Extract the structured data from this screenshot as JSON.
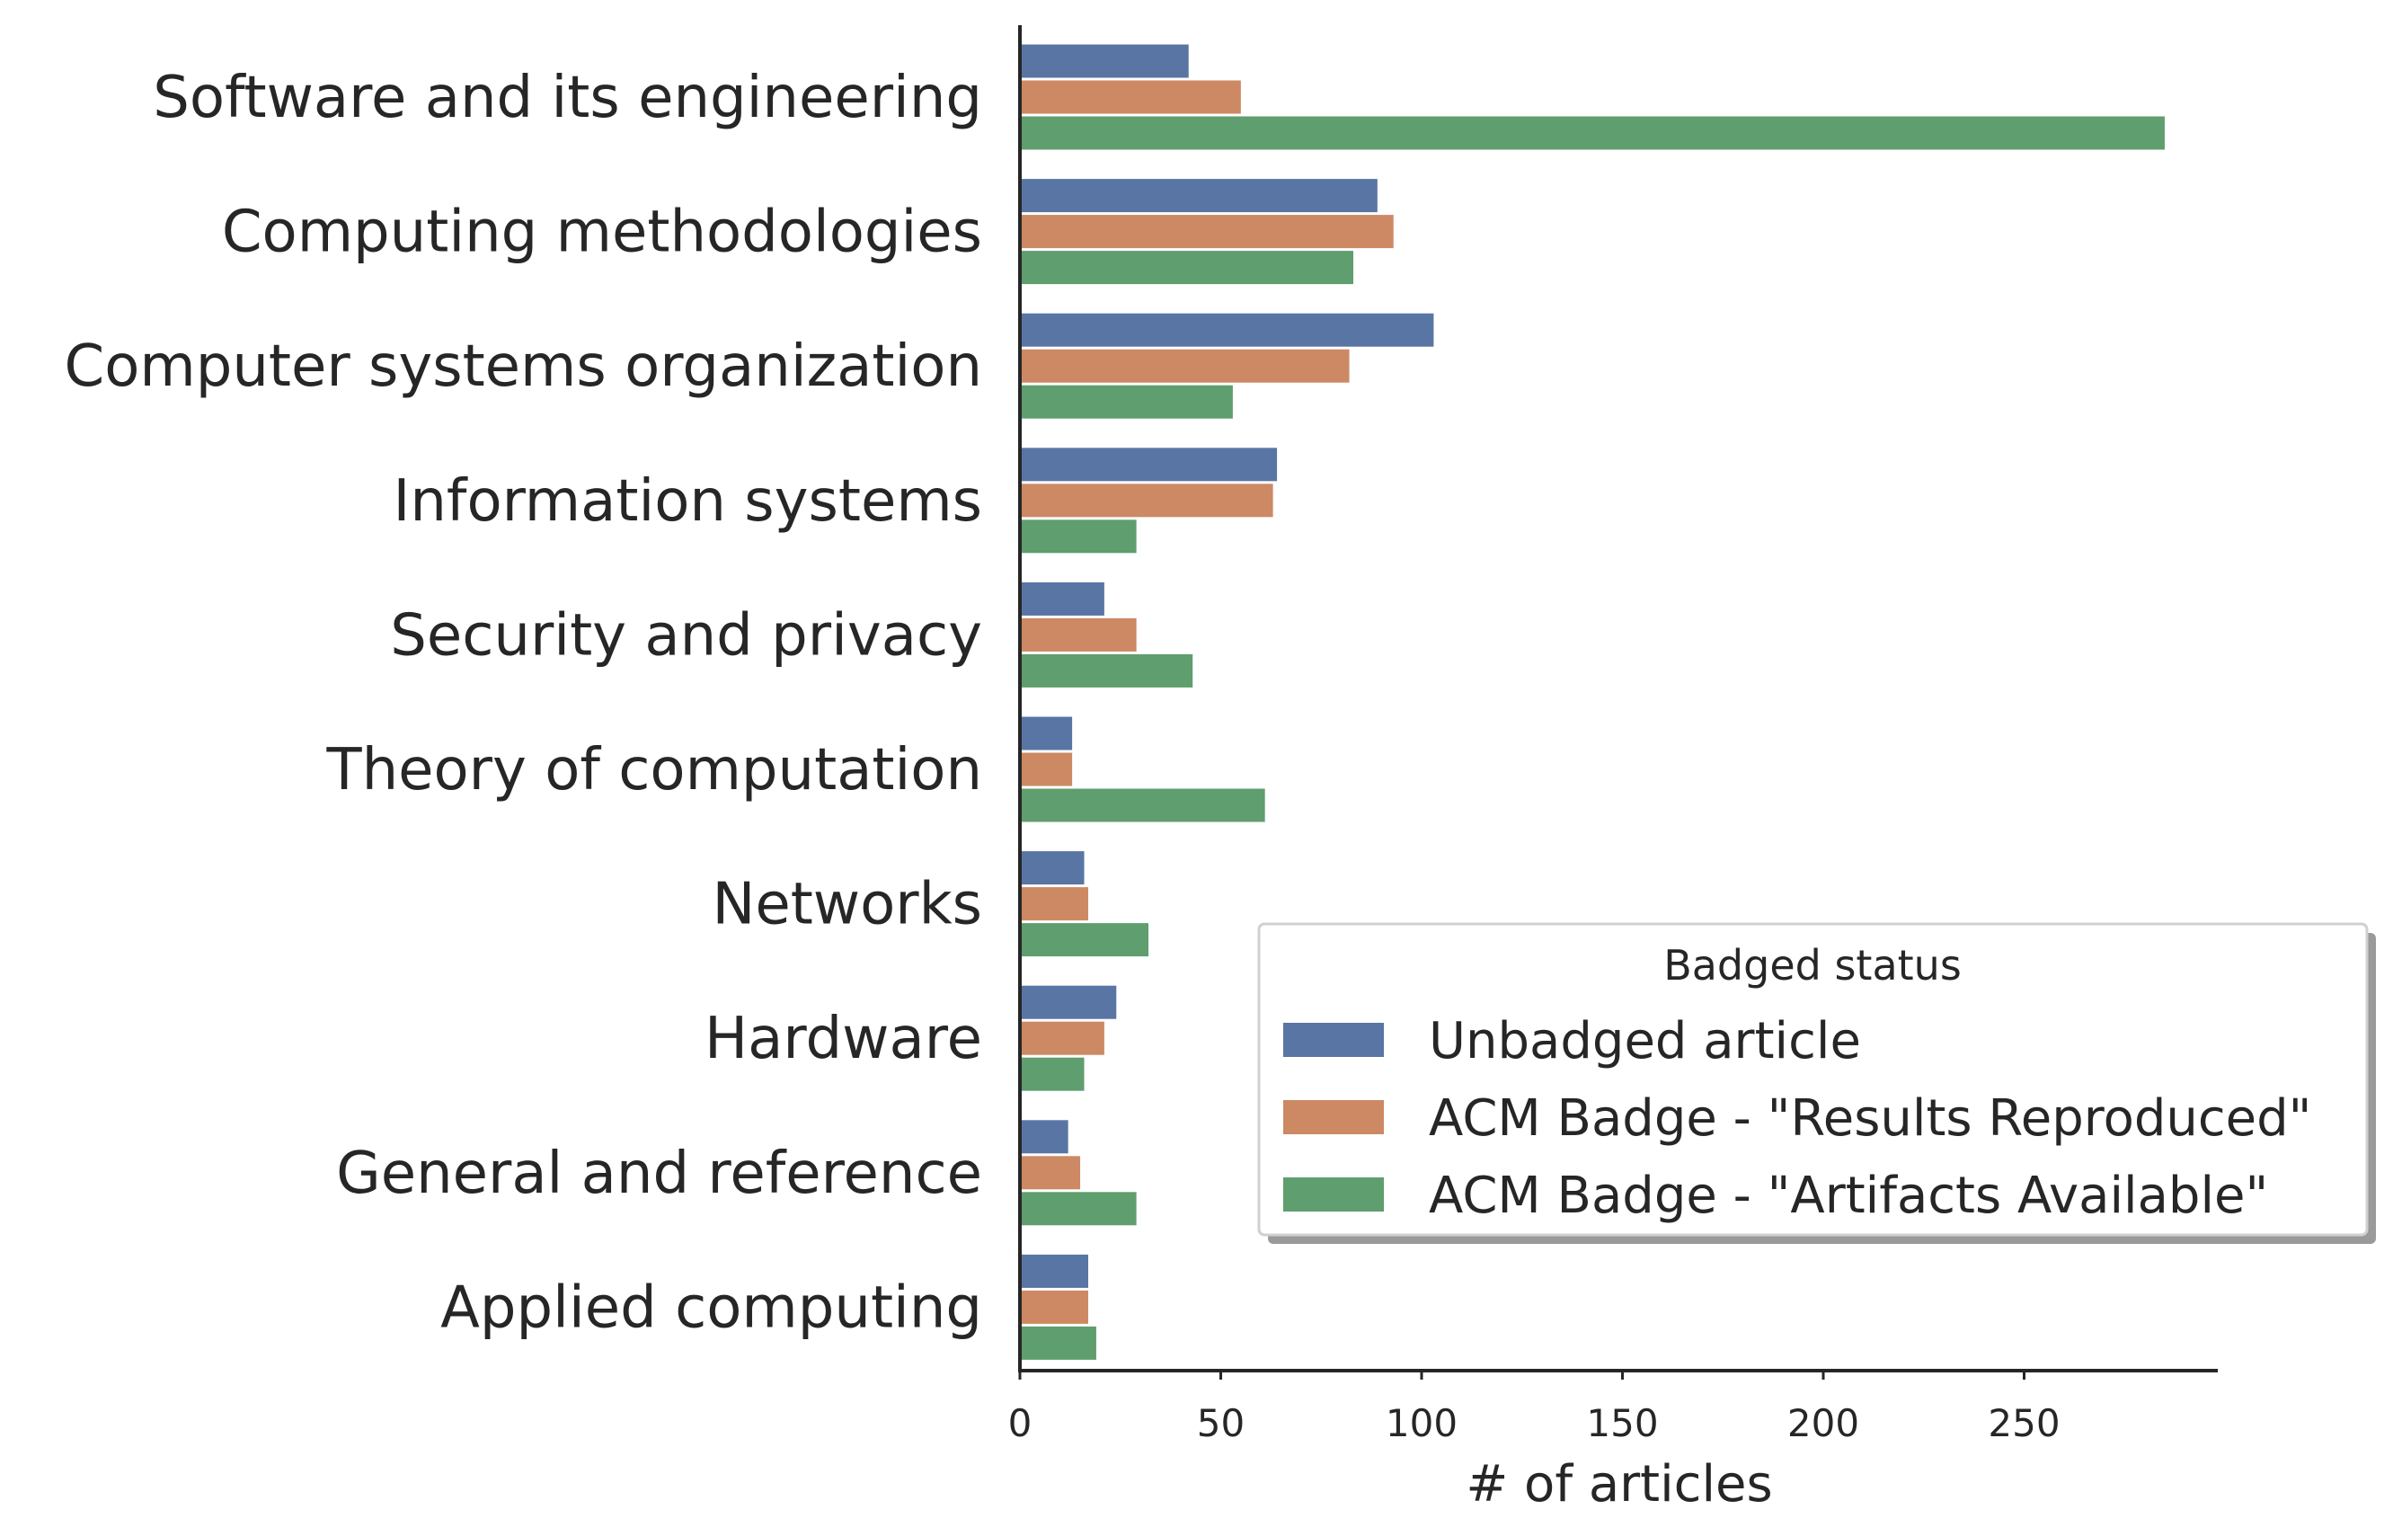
{
  "chart_data": {
    "type": "bar",
    "orientation": "horizontal",
    "categories": [
      "Software and its engineering",
      "Computing methodologies",
      "Computer systems organization",
      "Information systems",
      "Security and privacy",
      "Theory of computation",
      "Networks",
      "Hardware",
      "General and reference",
      "Applied computing"
    ],
    "series": [
      {
        "name": "Unbadged article",
        "color": "#5975a4",
        "values": [
          42,
          89,
          103,
          64,
          21,
          13,
          16,
          24,
          12,
          17
        ]
      },
      {
        "name": "ACM Badge - \"Results Reproduced\"",
        "color": "#cc8963",
        "values": [
          55,
          93,
          82,
          63,
          29,
          13,
          17,
          21,
          15,
          17
        ]
      },
      {
        "name": "ACM Badge - \"Artifacts Available\"",
        "color": "#5f9e6e",
        "values": [
          285,
          83,
          53,
          29,
          43,
          61,
          32,
          16,
          29,
          19
        ]
      }
    ],
    "xlabel": "# of articles",
    "ylabel": "",
    "xlim": [
      0,
      300
    ],
    "xticks": [
      0,
      50,
      100,
      150,
      200,
      250
    ],
    "grid": false,
    "legend": {
      "title": "Badged status",
      "position": "lower right"
    }
  }
}
